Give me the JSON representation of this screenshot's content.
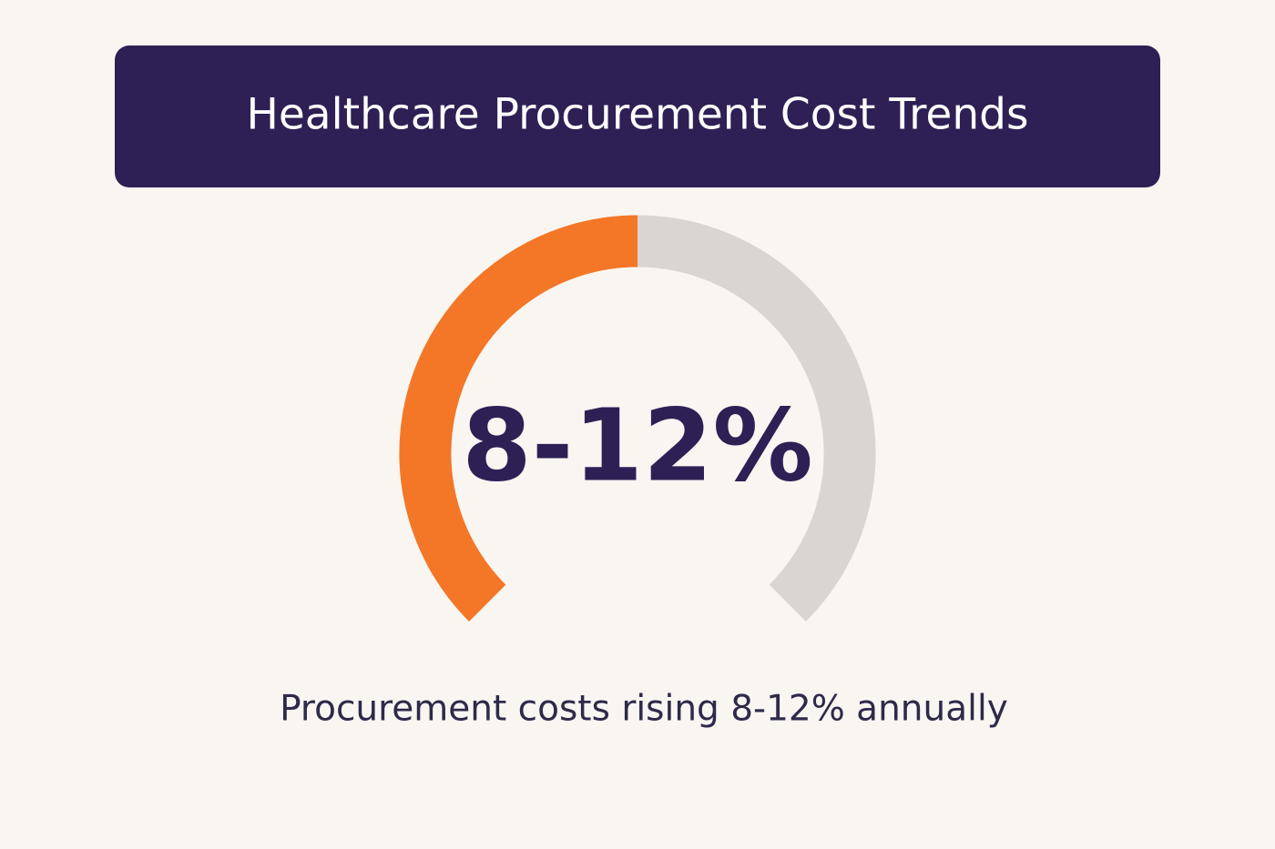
{
  "header": {
    "title": "Healthcare Procurement Cost Trends"
  },
  "gauge": {
    "label": "8-12%"
  },
  "caption": "Procurement costs rising 8-12% annually"
}
